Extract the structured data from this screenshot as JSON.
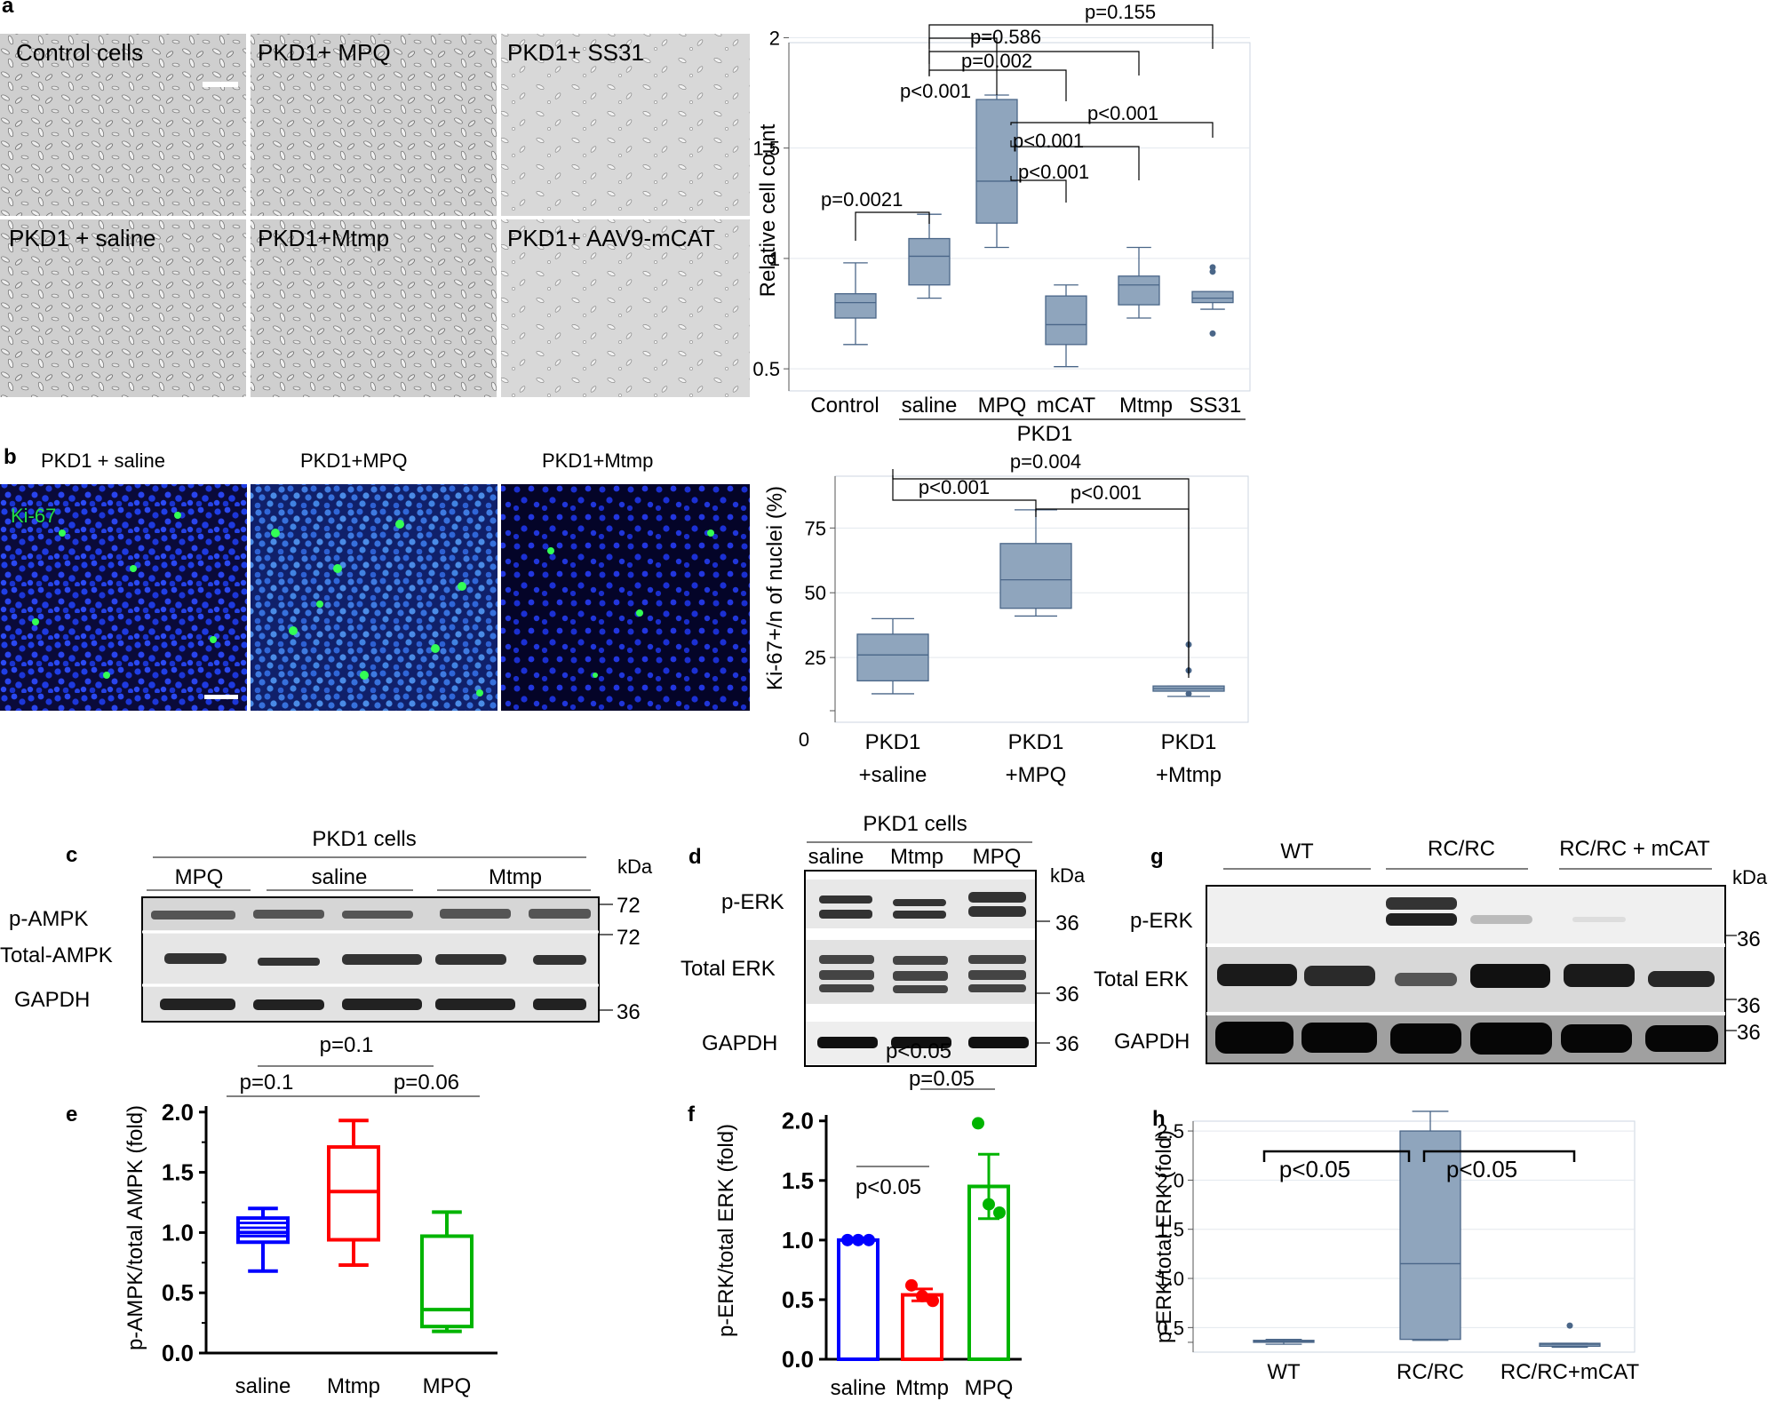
{
  "panel_letters": [
    "a",
    "b",
    "c",
    "d",
    "e",
    "f",
    "g",
    "h"
  ],
  "panel_a": {
    "micrograph_labels": [
      "Control cells",
      "PKD1+ MPQ",
      "PKD1+ SS31",
      "PKD1 + saline",
      "PKD1+Mtmp",
      "PKD1+ AAV9-mCAT"
    ],
    "group_label": "PKD1",
    "pvalues": [
      "p=0.155",
      "p=0.586",
      "p=0.002",
      "p<0.001",
      "p<0.001",
      "p<0.001",
      "p<0.001",
      "p=0.0021"
    ]
  },
  "panel_b": {
    "image_labels": [
      "PKD1 + saline",
      "PKD1+MPQ",
      "PKD1+Mtmp"
    ],
    "stain_label": "Ki-67",
    "pvalues": [
      "p=0.004",
      "p<0.001",
      "p<0.001"
    ]
  },
  "panel_c": {
    "title": "PKD1 cells",
    "lanes": [
      "MPQ",
      "saline",
      "Mtmp"
    ],
    "rows": [
      "p-AMPK",
      "Total-AMPK",
      "GAPDH"
    ],
    "kda_label": "kDa",
    "markers": [
      "72",
      "72",
      "36"
    ]
  },
  "panel_d": {
    "title": "PKD1 cells",
    "lanes": [
      "saline",
      "Mtmp",
      "MPQ"
    ],
    "rows": [
      "p-ERK",
      "Total ERK",
      "GAPDH"
    ],
    "kda_label": "kDa",
    "markers": [
      "36",
      "36",
      "36"
    ]
  },
  "panel_g": {
    "lanes": [
      "WT",
      "RC/RC",
      "RC/RC + mCAT"
    ],
    "rows": [
      "p-ERK",
      "Total ERK",
      "GAPDH"
    ],
    "kda_label": "kDa",
    "markers": [
      "36",
      "36",
      "36"
    ]
  },
  "panel_e": {
    "pvalues": [
      "p=0.1",
      "p=0.1",
      "p=0.06"
    ]
  },
  "panel_f": {
    "pvalues": [
      "p<0.05",
      "p=0.05",
      "p<0.05"
    ]
  },
  "panel_h": {
    "pvalues": [
      "p<0.05",
      "p<0.05"
    ]
  },
  "colors": {
    "box_fill": "#8fa5bd",
    "box_stroke": "#4a6688",
    "saline": "#0000ff",
    "mtmp": "#ff0000",
    "mpq": "#00b400"
  },
  "chart_data": [
    {
      "id": "a",
      "type": "box",
      "ylabel": "Relative cell count",
      "categories": [
        "Control",
        "saline",
        "MPQ",
        "mCAT",
        "Mtmp",
        "SS31"
      ],
      "yticks": [
        "0.5",
        "1",
        "1.5",
        "2"
      ],
      "ylim": [
        0.4,
        2.05
      ],
      "boxes": [
        {
          "min": 0.61,
          "q1": 0.73,
          "median": 0.8,
          "q3": 0.84,
          "max": 0.98,
          "outliers": []
        },
        {
          "min": 0.82,
          "q1": 0.88,
          "median": 1.01,
          "q3": 1.09,
          "max": 1.2,
          "outliers": []
        },
        {
          "min": 1.05,
          "q1": 1.16,
          "median": 1.35,
          "q3": 1.72,
          "max": 1.74,
          "outliers": []
        },
        {
          "min": 0.51,
          "q1": 0.61,
          "median": 0.7,
          "q3": 0.83,
          "max": 0.88,
          "outliers": []
        },
        {
          "min": 0.73,
          "q1": 0.79,
          "median": 0.88,
          "q3": 0.92,
          "max": 1.05,
          "outliers": []
        },
        {
          "min": 0.77,
          "q1": 0.8,
          "median": 0.82,
          "q3": 0.85,
          "max": 0.85,
          "outliers": [
            0.94,
            0.96,
            0.66
          ]
        }
      ]
    },
    {
      "id": "b",
      "type": "box",
      "ylabel": "Ki-67+/n of nuclei (%)",
      "categories": [
        "PKD1\n+saline",
        "PKD1\n+MPQ",
        "PKD1\n+Mtmp"
      ],
      "yticks": [
        "0",
        "25",
        "50",
        "75"
      ],
      "ylim": [
        0,
        95
      ],
      "boxes": [
        {
          "min": 11,
          "q1": 16,
          "median": 26,
          "q3": 34,
          "max": 40,
          "outliers": []
        },
        {
          "min": 41,
          "q1": 44,
          "median": 55,
          "q3": 69,
          "max": 82,
          "outliers": []
        },
        {
          "min": 10,
          "q1": 12,
          "median": 13,
          "q3": 14,
          "max": 14,
          "outliers": [
            30,
            20,
            11
          ]
        }
      ]
    },
    {
      "id": "e",
      "type": "box",
      "ylabel": "p-AMPK/total AMPK (fold)",
      "categories": [
        "saline",
        "Mtmp",
        "MPQ"
      ],
      "yticks": [
        "0.0",
        "0.5",
        "1.0",
        "1.5",
        "2.0"
      ],
      "ylim": [
        0,
        2.05
      ],
      "boxes": [
        {
          "min": 0.68,
          "q1": 0.92,
          "median": 1.0,
          "q3": 1.12,
          "max": 1.2,
          "outliers": [],
          "extra_lines": [
            0.97,
            1.04,
            1.08
          ]
        },
        {
          "min": 0.73,
          "q1": 0.94,
          "median": 1.34,
          "q3": 1.71,
          "max": 1.93,
          "outliers": []
        },
        {
          "min": 0.18,
          "q1": 0.22,
          "median": 0.36,
          "q3": 0.97,
          "max": 1.17,
          "outliers": []
        }
      ]
    },
    {
      "id": "f",
      "type": "bar",
      "ylabel": "p-ERK/total ERK (fold)",
      "categories": [
        "saline",
        "Mtmp",
        "MPQ"
      ],
      "yticks": [
        "0.0",
        "0.5",
        "1.0",
        "1.5",
        "2.0"
      ],
      "ylim": [
        0,
        2.05
      ],
      "values": [
        1.0,
        0.54,
        1.45
      ],
      "errors": [
        0.0,
        0.05,
        0.27
      ],
      "points": [
        [
          1.0,
          1.0,
          1.0
        ],
        [
          0.62,
          0.53,
          0.49
        ],
        [
          1.98,
          1.3,
          1.23
        ]
      ]
    },
    {
      "id": "h",
      "type": "box",
      "ylabel": "p-ERK/total ERK (fold)",
      "categories": [
        "WT",
        "RC/RC",
        "RC/RC+mCAT"
      ],
      "yticks": [
        "0.5",
        "1.0",
        "1.5",
        "2.0",
        "2.5"
      ],
      "ylim": [
        0.25,
        2.6
      ],
      "boxes": [
        {
          "min": 0.33,
          "q1": 0.35,
          "median": 0.36,
          "q3": 0.37,
          "max": 0.38,
          "outliers": []
        },
        {
          "min": 0.37,
          "q1": 0.38,
          "median": 1.15,
          "q3": 2.5,
          "max": 2.7,
          "outliers": []
        },
        {
          "min": 0.3,
          "q1": 0.31,
          "median": 0.33,
          "q3": 0.34,
          "max": 0.34,
          "outliers": [
            0.52
          ]
        }
      ]
    }
  ]
}
